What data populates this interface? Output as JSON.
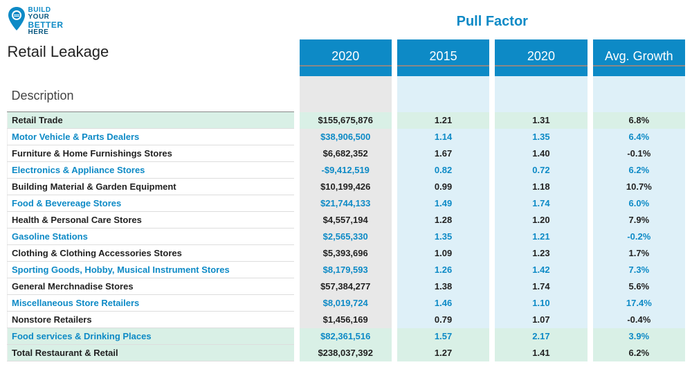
{
  "brand": {
    "line1": "BUILD",
    "line2": "YOUR",
    "line3": "BETTER",
    "line4": "HERE",
    "color_primary": "#0d8ac6",
    "color_dark": "#0a3e5e"
  },
  "page": {
    "title": "Retail Leakage",
    "description_label": "Description",
    "top_heading": "Pull Factor",
    "top_heading_color": "#0d8ac6"
  },
  "table": {
    "header_bg": "#0d8ac6",
    "spacer_bg_main": "#e8e8e8",
    "spacer_bg_alt": "#def0f8",
    "highlight_bg": "#d9f0e6",
    "alt_text_color": "#0d8ac6",
    "normal_text_color": "#222222",
    "columns": [
      {
        "label": "2020"
      },
      {
        "label": "2015"
      },
      {
        "label": "2020"
      },
      {
        "label": "Avg. Growth"
      }
    ],
    "rows": [
      {
        "desc": "Retail Trade",
        "v": [
          "$155,675,876",
          "1.21",
          "1.31",
          "6.8%"
        ],
        "highlight": true,
        "alt": false
      },
      {
        "desc": "Motor Vehicle & Parts Dealers",
        "v": [
          "$38,906,500",
          "1.14",
          "1.35",
          "6.4%"
        ],
        "alt": true
      },
      {
        "desc": "Furniture & Home Furnishings Stores",
        "v": [
          "$6,682,352",
          "1.67",
          "1.40",
          "-0.1%"
        ],
        "alt": false
      },
      {
        "desc": "Electronics & Appliance Stores",
        "v": [
          "-$9,412,519",
          "0.82",
          "0.72",
          "6.2%"
        ],
        "alt": true
      },
      {
        "desc": "Building Material & Garden Equipment",
        "v": [
          "$10,199,426",
          "0.99",
          "1.18",
          "10.7%"
        ],
        "alt": false
      },
      {
        "desc": "Food & Bevereage Stores",
        "v": [
          "$21,744,133",
          "1.49",
          "1.74",
          "6.0%"
        ],
        "alt": true
      },
      {
        "desc": "Health & Personal Care Stores",
        "v": [
          "$4,557,194",
          "1.28",
          "1.20",
          "7.9%"
        ],
        "alt": false
      },
      {
        "desc": "Gasoline Stations",
        "v": [
          "$2,565,330",
          "1.35",
          "1.21",
          "-0.2%"
        ],
        "alt": true
      },
      {
        "desc": "Clothing & Clothing Accessories Stores",
        "v": [
          "$5,393,696",
          "1.09",
          "1.23",
          "1.7%"
        ],
        "alt": false
      },
      {
        "desc": "Sporting Goods, Hobby, Musical Instrument Stores",
        "v": [
          "$8,179,593",
          "1.26",
          "1.42",
          "7.3%"
        ],
        "alt": true
      },
      {
        "desc": "General Merchnadise Stores",
        "v": [
          "$57,384,277",
          "1.38",
          "1.74",
          "5.6%"
        ],
        "alt": false
      },
      {
        "desc": "Miscellaneous Store Retailers",
        "v": [
          "$8,019,724",
          "1.46",
          "1.10",
          "17.4%"
        ],
        "alt": true
      },
      {
        "desc": "Nonstore Retailers",
        "v": [
          "$1,456,169",
          "0.79",
          "1.07",
          "-0.4%"
        ],
        "alt": false
      },
      {
        "desc": "Food services & Drinking Places",
        "v": [
          "$82,361,516",
          "1.57",
          "2.17",
          "3.9%"
        ],
        "highlight": true,
        "alt": true
      },
      {
        "desc": "Total Restaurant & Retail",
        "v": [
          "$238,037,392",
          "1.27",
          "1.41",
          "6.2%"
        ],
        "highlight": true,
        "alt": false
      }
    ]
  }
}
